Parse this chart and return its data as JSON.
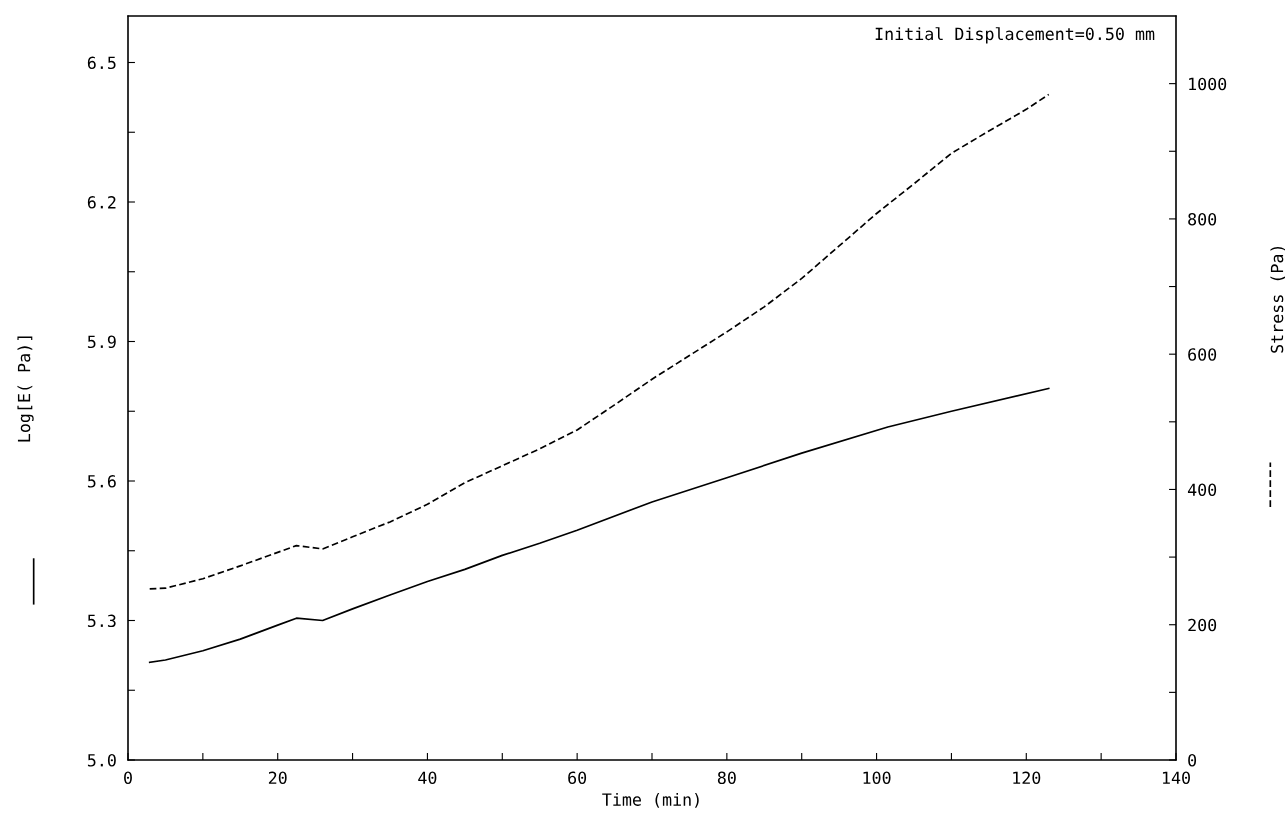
{
  "chart_data": {
    "type": "line",
    "xlabel": "Time (min)",
    "ylabel": "Log[E( Pa)]",
    "y2label": "Stress (Pa)",
    "annotations": [
      "Initial Displacement=0.50 mm"
    ],
    "xlim": [
      0,
      140
    ],
    "xticks": [
      0,
      {
        "value": 10,
        "label": null
      },
      20,
      {
        "value": 30,
        "label": null
      },
      40,
      {
        "value": 50,
        "label": null
      },
      60,
      {
        "value": 70,
        "label": null
      },
      80,
      {
        "value": 90,
        "label": null
      },
      100,
      {
        "value": 110,
        "label": null
      },
      120,
      {
        "value": 130,
        "label": null
      },
      140
    ],
    "ylim": [
      5.0,
      6.6
    ],
    "yticks": [
      {
        "value": 5.0,
        "label": "5.0"
      },
      {
        "value": 5.15,
        "label": null
      },
      5.3,
      {
        "value": 5.45,
        "label": null
      },
      5.6,
      {
        "value": 5.75,
        "label": null
      },
      5.9,
      {
        "value": 6.05,
        "label": null
      },
      6.2,
      {
        "value": 6.35,
        "label": null
      },
      6.5
    ],
    "y2lim": [
      0,
      1100
    ],
    "y2ticks": [
      0,
      {
        "value": 100,
        "label": null
      },
      200,
      {
        "value": 300,
        "label": null
      },
      400,
      {
        "value": 500,
        "label": null
      },
      600,
      {
        "value": 700,
        "label": null
      },
      800,
      {
        "value": 900,
        "label": null
      },
      1000
    ],
    "grid": false,
    "legend": false,
    "series": [
      {
        "color": "#000000",
        "line_style": "solid",
        "x": [
          2.9,
          5,
          10,
          15,
          20,
          22.5,
          26,
          30,
          35,
          40,
          45,
          50,
          55,
          60,
          70,
          80,
          90,
          101.5,
          110,
          123
        ],
        "values": [
          5.21,
          5.215,
          5.235,
          5.26,
          5.29,
          5.305,
          5.3,
          5.325,
          5.355,
          5.384,
          5.41,
          5.44,
          5.466,
          5.494,
          5.555,
          5.607,
          5.66,
          5.716,
          5.75,
          5.799
        ]
      },
      {
        "color": "#000000",
        "line_style": "dashed",
        "axis": "y2",
        "x": [
          2.9,
          5,
          10,
          15,
          20,
          22.5,
          26,
          30,
          35,
          40,
          45,
          50,
          55,
          60,
          65,
          70,
          75,
          80,
          85,
          90,
          95,
          100,
          105,
          110,
          115,
          120,
          123
        ],
        "values": [
          253,
          254,
          268,
          287,
          307,
          317,
          312,
          330,
          352,
          378,
          410,
          435,
          460,
          488,
          525,
          563,
          598,
          633,
          670,
          712,
          760,
          808,
          852,
          897,
          930,
          962,
          984
        ]
      }
    ]
  }
}
